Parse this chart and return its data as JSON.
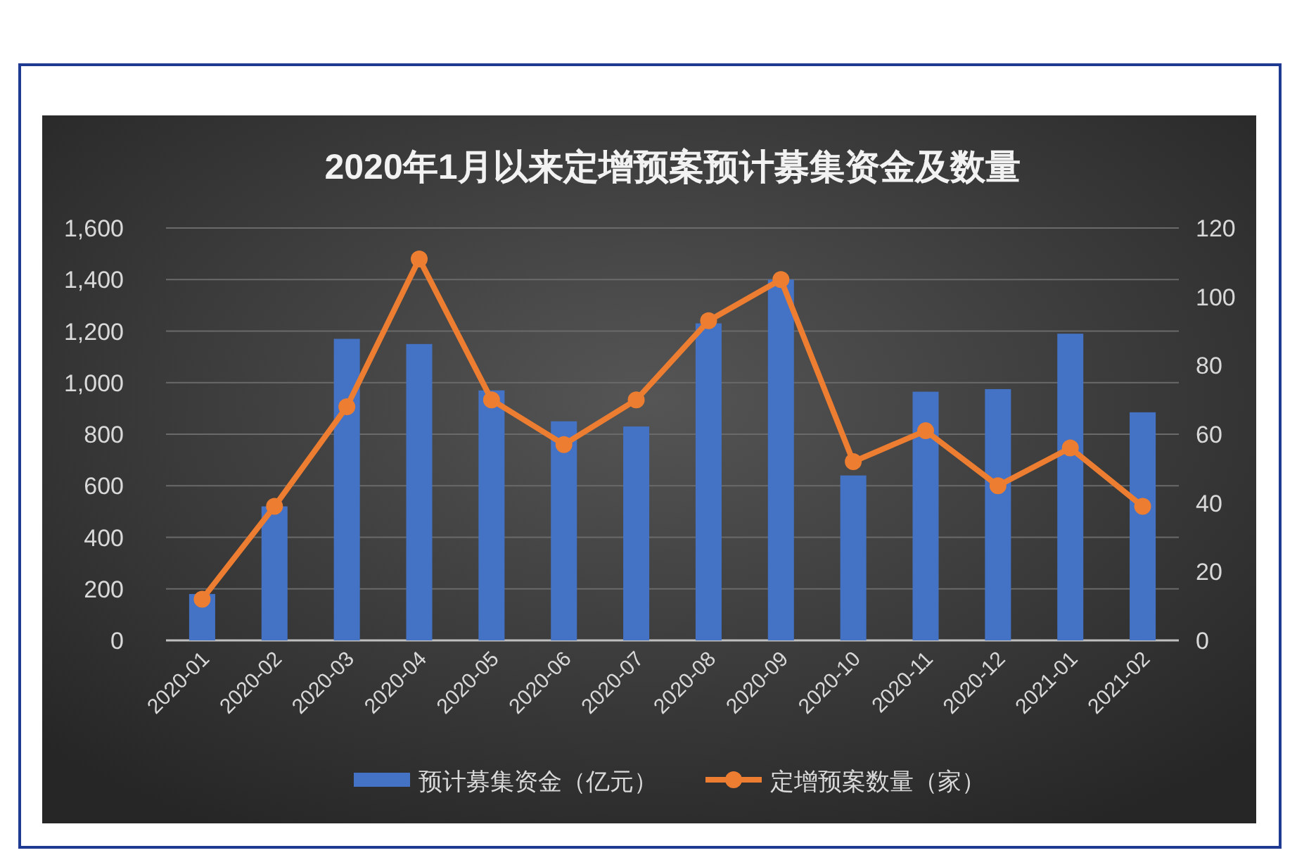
{
  "chart_data": {
    "type": "bar",
    "title": "2020年1月以来定增预案预计募集资金及数量",
    "categories": [
      "2020-01",
      "2020-02",
      "2020-03",
      "2020-04",
      "2020-05",
      "2020-06",
      "2020-07",
      "2020-08",
      "2020-09",
      "2020-10",
      "2020-11",
      "2020-12",
      "2021-01",
      "2021-02"
    ],
    "series": [
      {
        "name": "预计募集资金（亿元）",
        "color": "#4472c4",
        "values": [
          180,
          520,
          1170,
          1150,
          970,
          850,
          830,
          1230,
          1400,
          640,
          965,
          975,
          1190,
          885
        ]
      },
      {
        "name": "定增预案数量（家）",
        "type": "line",
        "axis": "y2",
        "color": "#ed7d31",
        "marker": "circle",
        "values": [
          12,
          39,
          68,
          111,
          70,
          57,
          70,
          93,
          105,
          52,
          61,
          45,
          56,
          39
        ]
      }
    ],
    "ylim": [
      0,
      1600
    ],
    "yticks": [
      0,
      200,
      400,
      600,
      800,
      {
        "value": 1000,
        "label": "1,000"
      },
      {
        "value": 1200,
        "label": "1,200"
      },
      {
        "value": 1400,
        "label": "1,400"
      },
      {
        "value": 1600,
        "label": "1,600"
      }
    ],
    "y2lim": [
      0,
      120
    ],
    "y2ticks": [
      0,
      20,
      40,
      60,
      80,
      100,
      120
    ],
    "grid": "y",
    "legend": "bottom"
  }
}
